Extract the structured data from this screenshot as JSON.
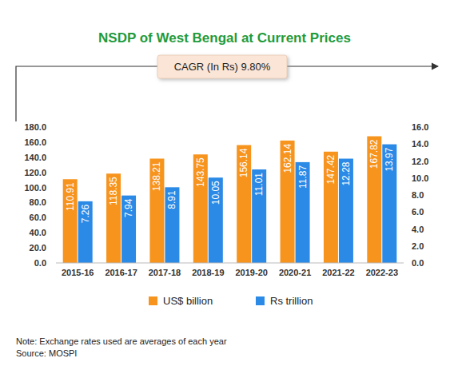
{
  "chart_data": {
    "type": "bar",
    "title": "NSDP of West Bengal at Current Prices",
    "annotation": "CAGR (In Rs) 9.80%",
    "note": "Note: Exchange rates used are averages of each year",
    "source": "Source: MOSPI",
    "categories": [
      "2015-16",
      "2016-17",
      "2017-18",
      "2018-19",
      "2019-20",
      "2020-21",
      "2021-22",
      "2022-23"
    ],
    "series": [
      {
        "name": "US$ billion",
        "color": "#f7941d",
        "values": [
          110.91,
          118.35,
          138.21,
          143.75,
          156.14,
          162.14,
          147.42,
          167.82
        ]
      },
      {
        "name": "Rs trillion",
        "color": "#2b8ae6",
        "axis": "y2",
        "values": [
          7.26,
          7.94,
          8.91,
          10.05,
          11.01,
          11.87,
          12.28,
          13.97
        ]
      }
    ],
    "ylim": [
      0,
      180
    ],
    "yticks": [
      {
        "value": 0,
        "label": "0.0"
      },
      {
        "value": 20,
        "label": "20.0"
      },
      {
        "value": 40,
        "label": "40.0"
      },
      {
        "value": 60,
        "label": "60.0"
      },
      {
        "value": 80,
        "label": "80.0"
      },
      {
        "value": 100,
        "label": "100.0"
      },
      {
        "value": 120,
        "label": "120.0"
      },
      {
        "value": 140,
        "label": "140.0"
      },
      {
        "value": 160,
        "label": "160.0"
      },
      {
        "value": 180,
        "label": "180.0"
      }
    ],
    "y2lim": [
      0,
      16
    ],
    "y2ticks": [
      {
        "value": 0,
        "label": "0.0"
      },
      {
        "value": 2,
        "label": "2.0"
      },
      {
        "value": 4,
        "label": "4.0"
      },
      {
        "value": 6,
        "label": "6.0"
      },
      {
        "value": 8,
        "label": "8.0"
      },
      {
        "value": 10,
        "label": "10.0"
      },
      {
        "value": 12,
        "label": "12.0"
      },
      {
        "value": 14,
        "label": "14.0"
      },
      {
        "value": 16,
        "label": "16.0"
      }
    ],
    "grid": false,
    "legend": "bottom",
    "data_labels": true
  }
}
